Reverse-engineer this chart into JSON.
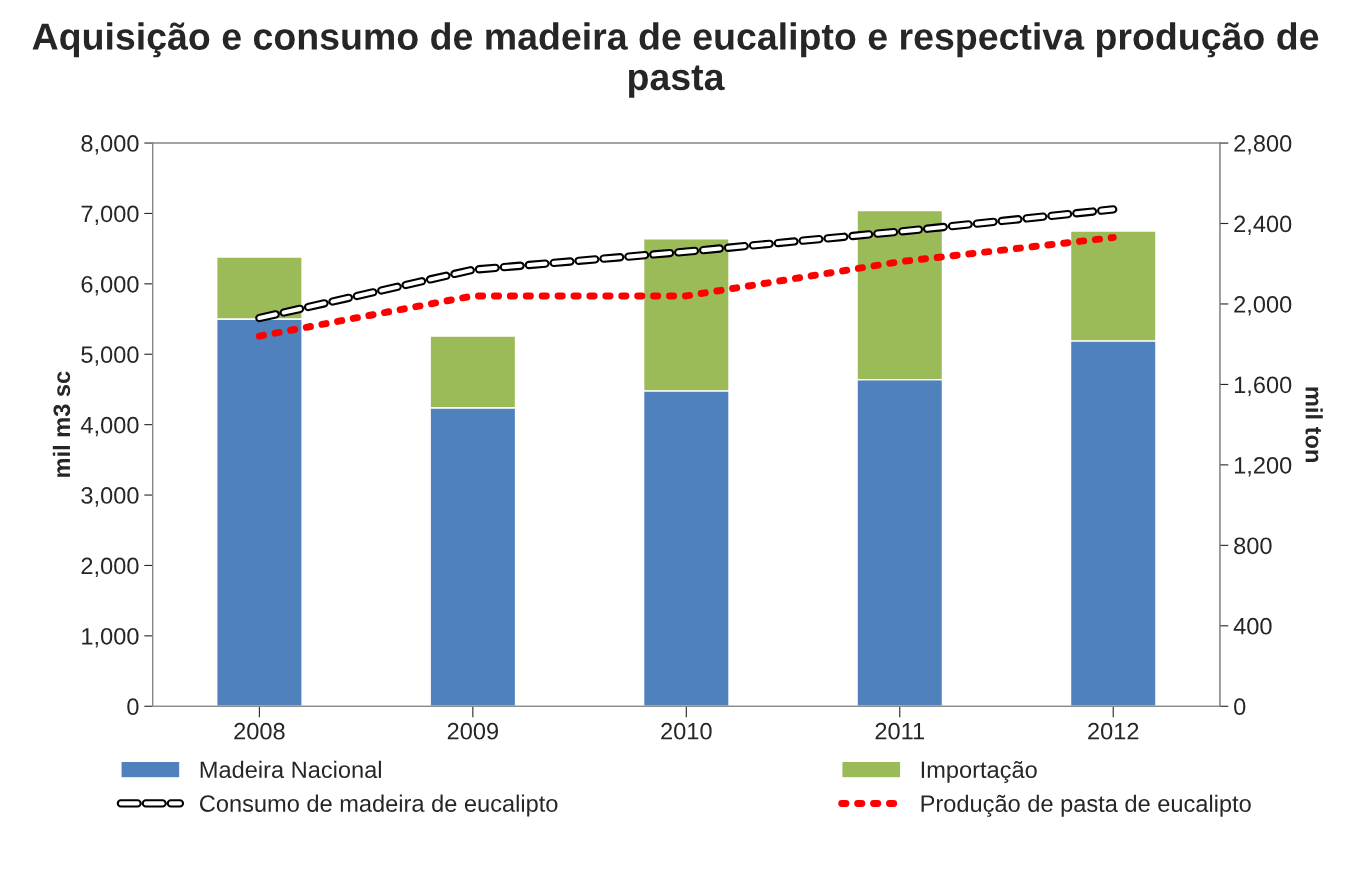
{
  "chart_data": {
    "type": "bar",
    "title": "Aquisição e consumo de madeira de eucalipto e respectiva produção de pasta",
    "categories": [
      "2008",
      "2009",
      "2010",
      "2011",
      "2012"
    ],
    "stacked": true,
    "series": [
      {
        "name": "Madeira Nacional",
        "color": "#4f81bd",
        "values": [
          5500,
          4240,
          4480,
          4640,
          5190
        ]
      },
      {
        "name": "Importação",
        "color": "#9bbb59",
        "values": [
          880,
          1020,
          2160,
          2400,
          1560
        ]
      },
      {
        "name": "Consumo de madeira de eucalipto",
        "type": "line",
        "axis": "y2",
        "color": "#000000",
        "line_style": "dashed",
        "values": [
          1930,
          2170,
          2260,
          2360,
          2470
        ]
      },
      {
        "name": "Produção de pasta de eucalipto",
        "type": "line",
        "axis": "y2",
        "color": "#ff0000",
        "line_style": "dotted",
        "values": [
          1840,
          2040,
          2040,
          2210,
          2330
        ]
      }
    ],
    "ylabel": "mil m3 sc",
    "y2label": "mil ton",
    "ylim": [
      0,
      8000
    ],
    "yticks": [
      {
        "value": 0,
        "label": "0"
      },
      {
        "value": 1000,
        "label": "1,000"
      },
      {
        "value": 2000,
        "label": "2,000"
      },
      {
        "value": 3000,
        "label": "3,000"
      },
      {
        "value": 4000,
        "label": "4,000"
      },
      {
        "value": 5000,
        "label": "5,000"
      },
      {
        "value": 6000,
        "label": "6,000"
      },
      {
        "value": 7000,
        "label": "7,000"
      },
      {
        "value": 8000,
        "label": "8,000"
      }
    ],
    "y2lim": [
      0,
      2800
    ],
    "y2ticks": [
      {
        "value": 0,
        "label": "0"
      },
      {
        "value": 400,
        "label": "400"
      },
      {
        "value": 800,
        "label": "800"
      },
      {
        "value": 1200,
        "label": "1,200"
      },
      {
        "value": 1600,
        "label": "1,600"
      },
      {
        "value": 2000,
        "label": "2,000"
      },
      {
        "value": 2400,
        "label": "2,400"
      },
      {
        "value": 2800,
        "label": "2,800"
      }
    ],
    "grid": false,
    "legend": "bottom"
  }
}
